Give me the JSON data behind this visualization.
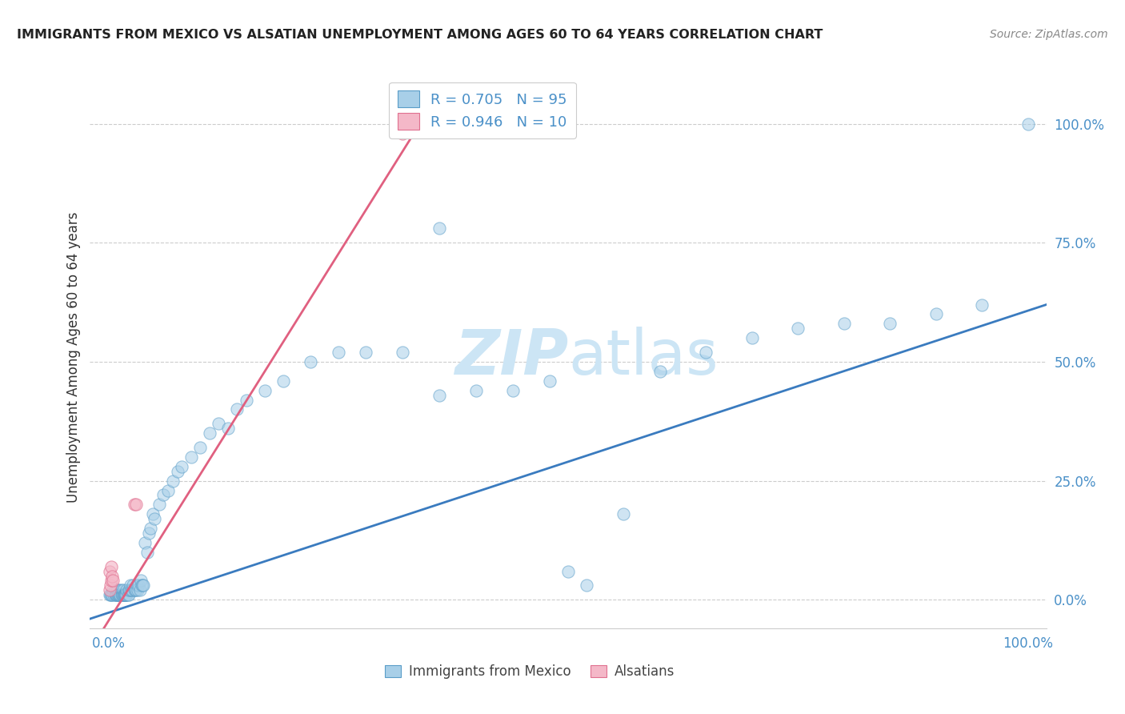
{
  "title": "IMMIGRANTS FROM MEXICO VS ALSATIAN UNEMPLOYMENT AMONG AGES 60 TO 64 YEARS CORRELATION CHART",
  "source": "Source: ZipAtlas.com",
  "ylabel": "Unemployment Among Ages 60 to 64 years",
  "legend_blue_r": "R = 0.705",
  "legend_blue_n": "N = 95",
  "legend_pink_r": "R = 0.946",
  "legend_pink_n": "N = 10",
  "legend_label_blue": "Immigrants from Mexico",
  "legend_label_pink": "Alsatians",
  "blue_color": "#a8cfe8",
  "pink_color": "#f4b8c8",
  "blue_edge_color": "#5a9dc8",
  "pink_edge_color": "#e07090",
  "blue_line_color": "#3a7bbf",
  "pink_line_color": "#e06080",
  "text_blue": "#4a90c8",
  "watermark_color": "#cce5f5",
  "title_color": "#222222",
  "source_color": "#888888",
  "grid_color": "#cccccc",
  "axis_label_color": "#333333",
  "blue_scatter_x": [
    0.001,
    0.002,
    0.003,
    0.004,
    0.005,
    0.006,
    0.007,
    0.007,
    0.008,
    0.008,
    0.009,
    0.009,
    0.01,
    0.01,
    0.011,
    0.011,
    0.012,
    0.012,
    0.013,
    0.013,
    0.014,
    0.014,
    0.015,
    0.015,
    0.016,
    0.016,
    0.017,
    0.017,
    0.018,
    0.018,
    0.019,
    0.019,
    0.02,
    0.02,
    0.021,
    0.022,
    0.022,
    0.023,
    0.024,
    0.025,
    0.026,
    0.027,
    0.028,
    0.029,
    0.03,
    0.031,
    0.032,
    0.033,
    0.034,
    0.035,
    0.036,
    0.037,
    0.038,
    0.04,
    0.042,
    0.044,
    0.046,
    0.048,
    0.05,
    0.055,
    0.06,
    0.065,
    0.07,
    0.075,
    0.08,
    0.09,
    0.1,
    0.11,
    0.12,
    0.13,
    0.14,
    0.15,
    0.17,
    0.19,
    0.22,
    0.25,
    0.28,
    0.32,
    0.36,
    0.4,
    0.44,
    0.48,
    0.52,
    0.56,
    0.6,
    0.65,
    0.7,
    0.75,
    0.8,
    0.85,
    0.9,
    0.95,
    1.0,
    0.36,
    0.5
  ],
  "blue_scatter_y": [
    0.01,
    0.01,
    0.01,
    0.01,
    0.02,
    0.01,
    0.01,
    0.02,
    0.01,
    0.01,
    0.01,
    0.02,
    0.01,
    0.02,
    0.01,
    0.01,
    0.02,
    0.01,
    0.01,
    0.01,
    0.01,
    0.02,
    0.01,
    0.01,
    0.01,
    0.02,
    0.01,
    0.01,
    0.01,
    0.01,
    0.01,
    0.01,
    0.01,
    0.02,
    0.01,
    0.01,
    0.02,
    0.02,
    0.03,
    0.02,
    0.02,
    0.03,
    0.02,
    0.02,
    0.02,
    0.03,
    0.02,
    0.03,
    0.02,
    0.04,
    0.03,
    0.03,
    0.03,
    0.12,
    0.1,
    0.14,
    0.15,
    0.18,
    0.17,
    0.2,
    0.22,
    0.23,
    0.25,
    0.27,
    0.28,
    0.3,
    0.32,
    0.35,
    0.37,
    0.36,
    0.4,
    0.42,
    0.44,
    0.46,
    0.5,
    0.52,
    0.52,
    0.52,
    0.43,
    0.44,
    0.44,
    0.46,
    0.03,
    0.18,
    0.48,
    0.52,
    0.55,
    0.57,
    0.58,
    0.58,
    0.6,
    0.62,
    1.0,
    0.78,
    0.06
  ],
  "pink_scatter_x": [
    0.001,
    0.001,
    0.002,
    0.003,
    0.003,
    0.004,
    0.005,
    0.028,
    0.03,
    0.32
  ],
  "pink_scatter_y": [
    0.02,
    0.06,
    0.03,
    0.04,
    0.07,
    0.05,
    0.04,
    0.2,
    0.2,
    0.98
  ],
  "blue_line_x": [
    -0.02,
    1.02
  ],
  "blue_line_y": [
    -0.04,
    0.62
  ],
  "pink_line_x": [
    -0.005,
    0.355
  ],
  "pink_line_y": [
    -0.06,
    1.05
  ],
  "xlim": [
    -0.02,
    1.02
  ],
  "ylim": [
    -0.06,
    1.08
  ],
  "yticks": [
    0.0,
    0.25,
    0.5,
    0.75,
    1.0
  ],
  "ytick_labels": [
    "0.0%",
    "25.0%",
    "50.0%",
    "75.0%",
    "100.0%"
  ],
  "xtick_labels_show": [
    "0.0%",
    "100.0%"
  ],
  "xtick_positions_show": [
    0.0,
    1.0
  ]
}
